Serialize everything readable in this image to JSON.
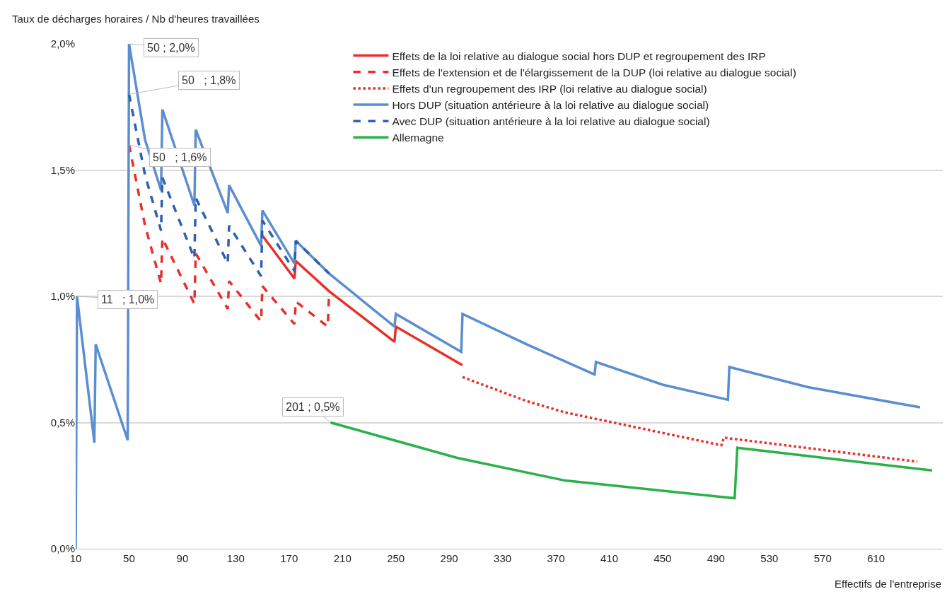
{
  "chart_data": {
    "type": "line",
    "ylabel": "Taux de décharges horaires / Nb d'heures travaillées",
    "xlabel": "Effectifs de l'entreprise",
    "xlim": [
      10,
      660
    ],
    "xticks": [
      10,
      50,
      90,
      130,
      170,
      210,
      250,
      290,
      330,
      370,
      410,
      450,
      490,
      530,
      570,
      610
    ],
    "ylim": [
      0,
      2.0
    ],
    "yticks": [
      {
        "value": 0,
        "label": "0,0%"
      },
      {
        "value": 0.5,
        "label": "0,5%"
      },
      {
        "value": 1.0,
        "label": "1,0%"
      },
      {
        "value": 1.5,
        "label": "1,5%"
      },
      {
        "value": 2.0,
        "label": "2,0%"
      }
    ],
    "grid": "y",
    "legend": "top right",
    "marker": "none",
    "series": [
      {
        "name": "Effets de la loi relative au dialogue social hors DUP et regroupement des IRP",
        "color": "#e8302a",
        "line_style": "solid",
        "x": [
          150,
          174,
          175,
          200,
          249,
          250,
          299,
          300
        ],
        "values": [
          1.24,
          1.07,
          1.14,
          1.02,
          0.82,
          0.88,
          0.73,
          0.73
        ]
      },
      {
        "name": "Effets de l'extension et de l'élargissement de la DUP (loi relative au dialogue social)",
        "color": "#e8302a",
        "line_style": "dashed",
        "x": [
          50,
          62,
          74,
          75,
          99,
          100,
          124,
          125,
          149,
          150,
          174,
          175,
          199,
          200
        ],
        "values": [
          1.6,
          1.28,
          1.05,
          1.23,
          0.97,
          1.17,
          0.95,
          1.06,
          0.9,
          1.04,
          0.89,
          0.98,
          0.88,
          1.02
        ]
      },
      {
        "name": "Effets d'un regroupement des IRP (loi relative au dialogue social)",
        "color": "#e8302a",
        "line_style": "dotted",
        "x": [
          300,
          348,
          377,
          494,
          496,
          641
        ],
        "values": [
          0.68,
          0.585,
          0.54,
          0.41,
          0.44,
          0.345
        ]
      },
      {
        "name": "Hors DUP (situation antérieure à la loi relative au dialogue social)",
        "color": "#5b8ed0",
        "line_style": "solid",
        "x": [
          10,
          11,
          24,
          25,
          49,
          50,
          62,
          74,
          75,
          99,
          100,
          124,
          125,
          149,
          150,
          174,
          175,
          200,
          249,
          250,
          299,
          300,
          348,
          399,
          400,
          450,
          499,
          500,
          559,
          643
        ],
        "values": [
          0,
          1.0,
          0.42,
          0.81,
          0.43,
          2.0,
          1.62,
          1.42,
          1.74,
          1.36,
          1.66,
          1.33,
          1.44,
          1.2,
          1.34,
          1.13,
          1.22,
          1.09,
          0.88,
          0.93,
          0.78,
          0.93,
          0.81,
          0.69,
          0.74,
          0.65,
          0.59,
          0.72,
          0.64,
          0.56
        ]
      },
      {
        "name": "Avec DUP (situation antérieure à la loi relative au dialogue social)",
        "color": "#2e5fb0",
        "line_style": "dashed",
        "x": [
          50,
          62,
          74,
          75,
          99,
          100,
          124,
          125,
          149,
          150,
          174,
          175,
          200
        ],
        "values": [
          1.8,
          1.48,
          1.26,
          1.47,
          1.15,
          1.39,
          1.13,
          1.28,
          1.08,
          1.3,
          1.1,
          1.22,
          1.09
        ]
      },
      {
        "name": "Allemagne",
        "color": "#2bb04a",
        "line_style": "solid",
        "x": [
          201,
          296,
          377,
          504,
          506,
          652
        ],
        "values": [
          0.5,
          0.36,
          0.27,
          0.2,
          0.4,
          0.31
        ]
      }
    ],
    "annotations": [
      {
        "text": "50 ; 2,0%",
        "x": 50,
        "y": 2.0
      },
      {
        "text": "50   ; 1,8%",
        "x": 50,
        "y": 1.8
      },
      {
        "text": "50   ; 1,6%",
        "x": 50,
        "y": 1.6
      },
      {
        "text": "11   ; 1,0%",
        "x": 11,
        "y": 1.0
      },
      {
        "text": "201 ; 0,5%",
        "x": 201,
        "y": 0.5
      }
    ]
  }
}
